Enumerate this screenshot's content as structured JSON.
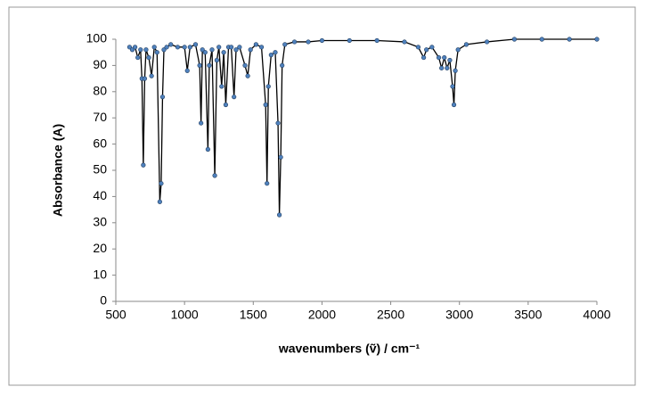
{
  "chart_data": {
    "type": "line",
    "xlabel": "wavenumbers (ṽ) / cm⁻¹",
    "ylabel": "Absorbance (A)",
    "x": [
      600,
      620,
      640,
      660,
      680,
      690,
      700,
      710,
      720,
      740,
      760,
      780,
      800,
      820,
      830,
      840,
      850,
      870,
      900,
      950,
      1000,
      1020,
      1040,
      1080,
      1110,
      1120,
      1130,
      1150,
      1170,
      1180,
      1200,
      1220,
      1235,
      1250,
      1270,
      1285,
      1300,
      1320,
      1340,
      1360,
      1375,
      1400,
      1440,
      1460,
      1480,
      1520,
      1560,
      1590,
      1600,
      1610,
      1630,
      1660,
      1680,
      1690,
      1700,
      1710,
      1730,
      1800,
      1900,
      2000,
      2200,
      2400,
      2600,
      2700,
      2740,
      2760,
      2800,
      2850,
      2870,
      2890,
      2910,
      2930,
      2950,
      2960,
      2970,
      2990,
      3050,
      3200,
      3400,
      3600,
      3800,
      4000
    ],
    "series": [
      {
        "color": "#4f81bd",
        "line_color": "#000000",
        "values": [
          97,
          96,
          97,
          93,
          96,
          85,
          52,
          85,
          96,
          93,
          86,
          97,
          95,
          38,
          45,
          78,
          96,
          97,
          98,
          97,
          97,
          88,
          97,
          98,
          90,
          68,
          96,
          95,
          58,
          90,
          96,
          48,
          92,
          97,
          82,
          95,
          75,
          97,
          97,
          78,
          96,
          97,
          90,
          86,
          96,
          98,
          97,
          75,
          45,
          82,
          94,
          95,
          68,
          33,
          55,
          90,
          98,
          99,
          99,
          99.5,
          99.5,
          99.5,
          99,
          97,
          93,
          96,
          97,
          93,
          89,
          93,
          89,
          92,
          82,
          75,
          88,
          96,
          98,
          99,
          100,
          100,
          100,
          100
        ]
      }
    ],
    "xlim": [
      500,
      4000
    ],
    "xticks": [
      500,
      1000,
      1500,
      2000,
      2500,
      3000,
      3500,
      4000
    ],
    "ylim": [
      0,
      100
    ],
    "yticks": [
      0,
      10,
      20,
      30,
      40,
      50,
      60,
      70,
      80,
      90,
      100
    ]
  }
}
